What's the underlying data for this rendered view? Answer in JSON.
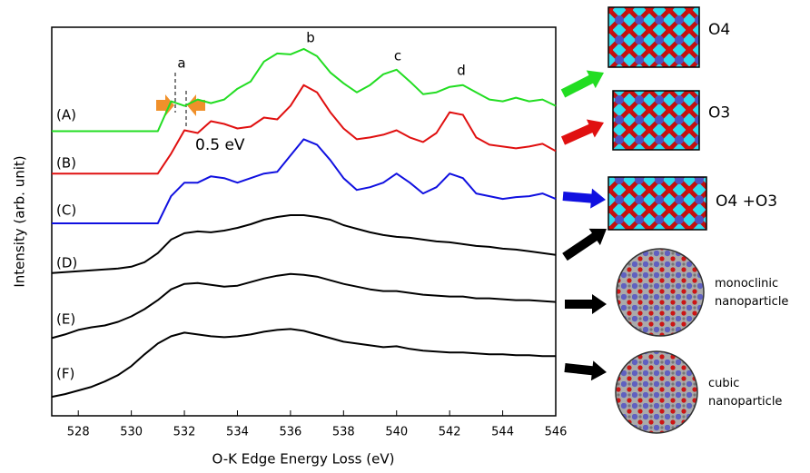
{
  "chart_data": {
    "type": "line",
    "xlabel": "O-K Edge Energy Loss (eV)",
    "ylabel": "Intensity (arb. unit)",
    "xlim": [
      527,
      546
    ],
    "xticks": [
      528,
      530,
      532,
      534,
      536,
      538,
      540,
      542,
      544,
      546
    ],
    "ylim": [
      0,
      430
    ],
    "x": [
      527,
      527.5,
      528,
      528.5,
      529,
      529.5,
      530,
      530.5,
      531,
      531.5,
      532,
      532.5,
      533,
      533.5,
      534,
      534.5,
      535,
      535.5,
      536,
      536.5,
      537,
      537.5,
      538,
      538.5,
      539,
      539.5,
      540,
      540.5,
      541,
      541.5,
      542,
      542.5,
      543,
      543.5,
      544,
      544.5,
      545,
      545.5,
      546
    ],
    "series": [
      {
        "name": "(A)",
        "color": "#22dd22",
        "values": [
          315,
          315,
          315,
          315,
          315,
          315,
          315,
          315,
          315,
          348,
          343,
          350,
          346,
          350,
          362,
          370,
          392,
          401,
          400,
          406,
          398,
          380,
          368,
          358,
          366,
          378,
          383,
          370,
          356,
          358,
          364,
          366,
          358,
          350,
          348,
          352,
          348,
          350,
          343
        ]
      },
      {
        "name": "(B)",
        "color": "#e01010",
        "values": [
          268,
          268,
          268,
          268,
          268,
          268,
          268,
          268,
          268,
          290,
          316,
          313,
          326,
          323,
          318,
          320,
          330,
          328,
          343,
          366,
          358,
          336,
          318,
          306,
          308,
          311,
          316,
          308,
          303,
          313,
          336,
          333,
          308,
          300,
          298,
          296,
          298,
          301,
          293
        ]
      },
      {
        "name": "(C)",
        "color": "#1010e0",
        "values": [
          213,
          213,
          213,
          213,
          213,
          213,
          213,
          213,
          213,
          243,
          258,
          258,
          265,
          263,
          258,
          263,
          268,
          270,
          288,
          306,
          300,
          283,
          263,
          250,
          253,
          258,
          268,
          258,
          246,
          253,
          268,
          263,
          246,
          243,
          240,
          242,
          243,
          246,
          240
        ]
      },
      {
        "name": "(D)",
        "color": "#000000",
        "values": [
          158,
          159,
          160,
          161,
          162,
          163,
          165,
          170,
          180,
          195,
          202,
          204,
          203,
          205,
          208,
          212,
          217,
          220,
          222,
          222,
          220,
          217,
          211,
          207,
          203,
          200,
          198,
          197,
          195,
          193,
          192,
          190,
          188,
          187,
          185,
          184,
          182,
          180,
          178
        ]
      },
      {
        "name": "(E)",
        "color": "#000000",
        "values": [
          86,
          90,
          95,
          98,
          100,
          104,
          110,
          118,
          128,
          140,
          146,
          147,
          145,
          143,
          144,
          148,
          152,
          155,
          157,
          156,
          154,
          150,
          146,
          143,
          140,
          138,
          138,
          136,
          134,
          133,
          132,
          132,
          130,
          130,
          129,
          128,
          128,
          127,
          126
        ]
      },
      {
        "name": "(F)",
        "color": "#000000",
        "values": [
          21,
          24,
          28,
          32,
          38,
          45,
          55,
          68,
          80,
          88,
          92,
          90,
          88,
          87,
          88,
          90,
          93,
          95,
          96,
          94,
          90,
          86,
          82,
          80,
          78,
          76,
          77,
          74,
          72,
          71,
          70,
          70,
          69,
          68,
          68,
          67,
          67,
          66,
          66
        ]
      }
    ],
    "annotations": [
      "a",
      "b",
      "c",
      "d",
      "0.5 eV"
    ],
    "structures": [
      {
        "label": "O4",
        "color": "#22dd22"
      },
      {
        "label": "O3",
        "color": "#e01010"
      },
      {
        "label": "O4 +O3",
        "color": "#1010e0"
      },
      {
        "label": "monoclinic nanoparticle",
        "color": "#000000"
      },
      {
        "label": "cubic nanoparticle",
        "color": "#000000"
      }
    ]
  }
}
